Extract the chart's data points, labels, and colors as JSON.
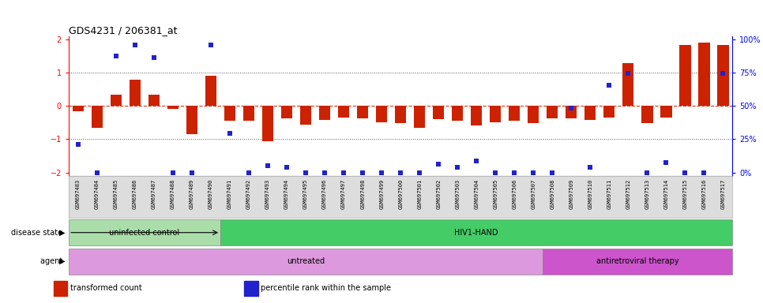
{
  "title": "GDS4231 / 206381_at",
  "samples": [
    "GSM697483",
    "GSM697484",
    "GSM697485",
    "GSM697486",
    "GSM697487",
    "GSM697488",
    "GSM697489",
    "GSM697490",
    "GSM697491",
    "GSM697492",
    "GSM697493",
    "GSM697494",
    "GSM697495",
    "GSM697496",
    "GSM697497",
    "GSM697498",
    "GSM697499",
    "GSM697500",
    "GSM697501",
    "GSM697502",
    "GSM697503",
    "GSM697504",
    "GSM697505",
    "GSM697506",
    "GSM697507",
    "GSM697508",
    "GSM697509",
    "GSM697510",
    "GSM697511",
    "GSM697512",
    "GSM697513",
    "GSM697514",
    "GSM697515",
    "GSM697516",
    "GSM697517"
  ],
  "bar_values": [
    -0.15,
    -0.65,
    0.35,
    0.8,
    0.35,
    -0.08,
    -0.85,
    0.92,
    -0.45,
    -0.45,
    -1.05,
    -0.38,
    -0.55,
    -0.42,
    -0.35,
    -0.38,
    -0.48,
    -0.52,
    -0.65,
    -0.4,
    -0.45,
    -0.58,
    -0.48,
    -0.45,
    -0.52,
    -0.38,
    -0.38,
    -0.42,
    -0.35,
    1.3,
    -0.52,
    -0.35,
    1.85,
    1.92,
    1.85
  ],
  "blue_values": [
    -1.15,
    -2.0,
    1.5,
    1.85,
    1.45,
    -2.0,
    -2.0,
    1.85,
    -0.82,
    -2.0,
    -1.8,
    -1.85,
    -2.0,
    -2.0,
    -2.0,
    -2.0,
    -2.0,
    -2.0,
    -2.0,
    -1.75,
    -1.85,
    -1.65,
    -2.0,
    -2.0,
    -2.0,
    -2.0,
    -0.07,
    -1.85,
    0.62,
    0.98,
    -2.0,
    -1.7,
    -2.0,
    -2.0,
    0.98
  ],
  "bar_color": "#cc2200",
  "blue_color": "#2222cc",
  "zero_line_color": "#cc2200",
  "dotted_line_color": "#555555",
  "ylim": [
    -2.1,
    2.1
  ],
  "yticks_left": [
    -2,
    -1,
    0,
    1,
    2
  ],
  "disease_state_groups": [
    {
      "label": "uninfected control",
      "start": 0,
      "end": 8,
      "color": "#aaddaa"
    },
    {
      "label": "HIV1-HAND",
      "start": 8,
      "end": 35,
      "color": "#44cc66"
    }
  ],
  "agent_groups": [
    {
      "label": "untreated",
      "start": 0,
      "end": 25,
      "color": "#dd99dd"
    },
    {
      "label": "antiretroviral therapy",
      "start": 25,
      "end": 35,
      "color": "#cc55cc"
    }
  ],
  "disease_state_label": "disease state",
  "agent_label": "agent",
  "legend_items": [
    {
      "label": "transformed count",
      "color": "#cc2200"
    },
    {
      "label": "percentile rank within the sample",
      "color": "#2222cc"
    }
  ],
  "background_color": "#ffffff",
  "plot_bg_color": "#ffffff",
  "xticklabel_bg": "#dddddd"
}
